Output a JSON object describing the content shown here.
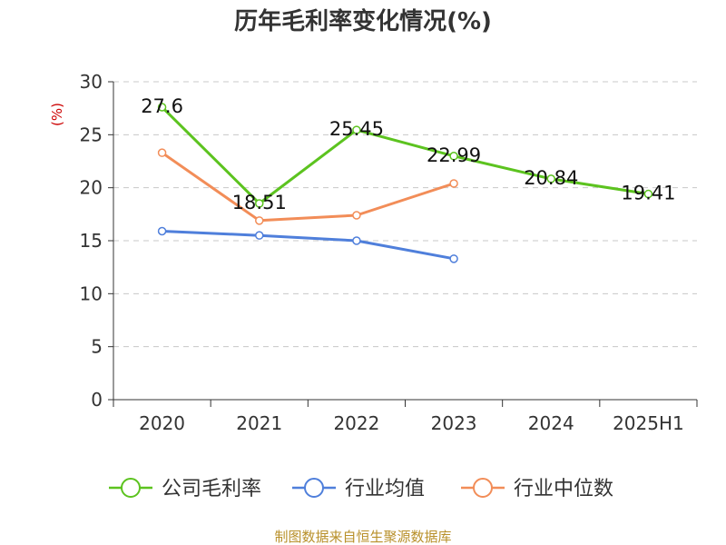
{
  "chart_data": {
    "type": "line",
    "title": "历年毛利率变化情况(%)",
    "ylabel": "(%)",
    "xlabel": "",
    "categories": [
      "2020",
      "2021",
      "2022",
      "2023",
      "2024",
      "2025H1"
    ],
    "yticks": [
      0,
      5,
      10,
      15,
      20,
      25,
      30
    ],
    "ylim": [
      0,
      30
    ],
    "grid": true,
    "legend_position": "bottom",
    "series": [
      {
        "name": "公司毛利率",
        "color": "#5cc31f",
        "values": [
          27.6,
          18.51,
          25.45,
          22.99,
          20.84,
          19.41
        ],
        "labels": [
          "27.6",
          "18.51",
          "25.45",
          "22.99",
          "20.84",
          "19.41"
        ]
      },
      {
        "name": "行业均值",
        "color": "#4f7fdb",
        "values": [
          15.9,
          15.5,
          15.0,
          13.3,
          null,
          null
        ],
        "labels": []
      },
      {
        "name": "行业中位数",
        "color": "#f28d58",
        "values": [
          23.3,
          16.9,
          17.4,
          20.4,
          null,
          null
        ],
        "labels": []
      }
    ]
  },
  "footer": {
    "source": "制图数据来自恒生聚源数据库"
  }
}
